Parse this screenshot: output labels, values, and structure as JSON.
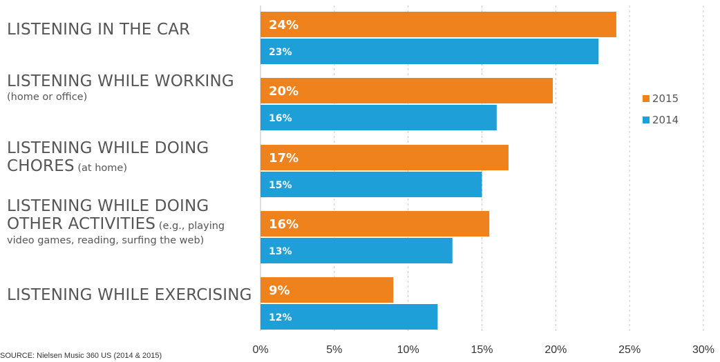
{
  "chart_data": {
    "type": "bar",
    "orientation": "horizontal",
    "categories": [
      {
        "lines": [
          {
            "parts": [
              {
                "text": "LISTENING IN THE CAR",
                "style": "main"
              }
            ]
          }
        ]
      },
      {
        "lines": [
          {
            "parts": [
              {
                "text": "LISTENING WHILE WORKING",
                "style": "main"
              }
            ]
          },
          {
            "parts": [
              {
                "text": "(home or office)",
                "style": "sub"
              }
            ]
          }
        ]
      },
      {
        "lines": [
          {
            "parts": [
              {
                "text": "LISTENING WHILE DOING",
                "style": "main"
              }
            ]
          },
          {
            "parts": [
              {
                "text": "CHORES",
                "style": "main"
              },
              {
                "text": " (at home)",
                "style": "sub"
              }
            ]
          }
        ]
      },
      {
        "lines": [
          {
            "parts": [
              {
                "text": "LISTENING WHILE DOING",
                "style": "main"
              }
            ]
          },
          {
            "parts": [
              {
                "text": "OTHER ACTIVITIES",
                "style": "main"
              },
              {
                "text": " (e.g., playing",
                "style": "sub"
              }
            ]
          },
          {
            "parts": [
              {
                "text": "video games, reading, surfing the web)",
                "style": "sub"
              }
            ]
          }
        ]
      },
      {
        "lines": [
          {
            "parts": [
              {
                "text": "LISTENING WHILE EXERCISING",
                "style": "main"
              }
            ]
          }
        ]
      }
    ],
    "series": [
      {
        "name": "2015",
        "color": "#f0821e",
        "values": [
          24.1,
          19.8,
          16.8,
          15.5,
          9.0
        ],
        "labels": [
          "24%",
          "20%",
          "17%",
          "16%",
          "9%"
        ]
      },
      {
        "name": "2014",
        "color": "#1e9fd8",
        "values": [
          22.9,
          16.0,
          15.0,
          13.0,
          12.0
        ],
        "labels": [
          "23%",
          "16%",
          "15%",
          "13%",
          "12%"
        ]
      }
    ],
    "xlim": [
      0,
      30
    ],
    "xticks": [
      0,
      5,
      10,
      15,
      20,
      25,
      30
    ],
    "xtick_labels": [
      "0%",
      "5%",
      "10%",
      "15%",
      "20%",
      "25%",
      "30%"
    ],
    "grid": true,
    "legend_position": "right",
    "source": "SOURCE: Nielsen Music 360 US (2014 & 2015)"
  }
}
